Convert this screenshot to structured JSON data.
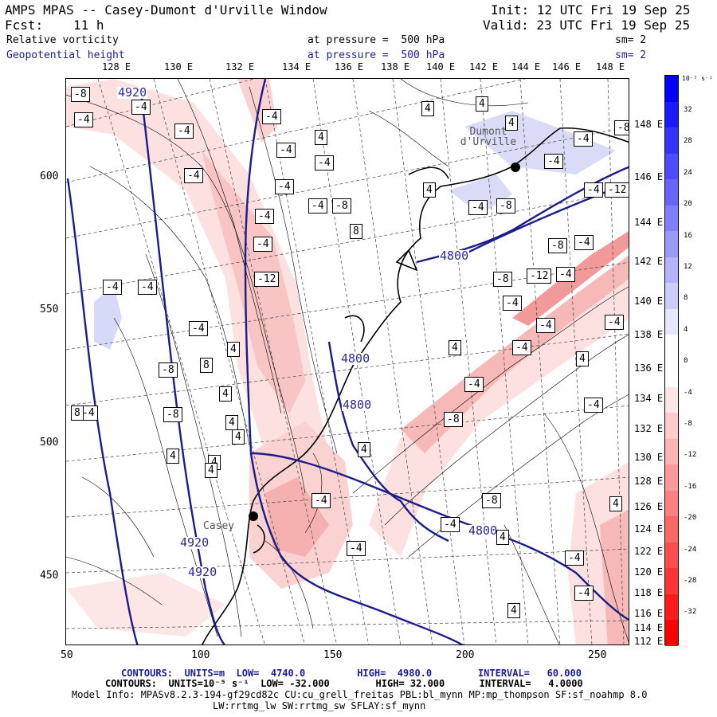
{
  "header": {
    "title": "AMPS MPAS -- Casey-Dumont d'Urville Window",
    "init": "Init: 12 UTC Fri 19 Sep 25",
    "fcst_label": "Fcst:",
    "fcst_value": "11 h",
    "valid": "Valid: 23 UTC Fri 19 Sep 25",
    "field1": "Relative vorticity",
    "field1_level": "at pressure =  500 hPa",
    "field1_sm": "sm= 2",
    "field2": "Geopotential height",
    "field2_level": "at pressure =  500 hPa",
    "field2_sm": "sm= 2"
  },
  "top_longitudes": [
    "128 E",
    "130 E",
    "132 E",
    "134 E",
    "136 E",
    "138 E",
    "140 E",
    "142 E",
    "144 E",
    "146 E",
    "148 E"
  ],
  "right_longitudes": [
    "148 E",
    "146 E",
    "144 E",
    "142 E",
    "140 E",
    "138 E",
    "136 E",
    "134 E",
    "132 E",
    "130 E",
    "128 E",
    "126 E",
    "124 E",
    "122 E",
    "120 E",
    "118 E",
    "116 E",
    "114 E",
    "112 E"
  ],
  "x_ticks": [
    "50",
    "100",
    "150",
    "200",
    "250"
  ],
  "y_ticks": [
    "600",
    "550",
    "500",
    "450"
  ],
  "colorbar": {
    "unit": "10⁻⁵ s⁻¹",
    "labels": [
      "32",
      "28",
      "24",
      "20",
      "16",
      "12",
      "8",
      "4",
      "0",
      "-4",
      "-8",
      "-12",
      "-16",
      "-20",
      "-24",
      "-28",
      "-32"
    ],
    "colors": [
      "#0000ff",
      "#1a1aff",
      "#3333ff",
      "#4d4dff",
      "#6666ff",
      "#8080ff",
      "#9999ff",
      "#b3b3ff",
      "#ccccff",
      "#e6e6ff",
      "#ffffff",
      "#ffffff",
      "#ffe6e6",
      "#ffcccc",
      "#ffb3b3",
      "#ff9999",
      "#ff8080",
      "#ff6666",
      "#ff4d4d",
      "#ff3333",
      "#ff1a1a",
      "#ff0000"
    ]
  },
  "map": {
    "stations": [
      "Dumont d'Urville",
      "Casey"
    ],
    "height_labels": [
      "4920",
      "4800",
      "4800",
      "4800",
      "4800",
      "4920",
      "4920"
    ],
    "vort_labels": [
      "-8",
      "-4",
      "-4",
      "-4",
      "-4",
      "-4",
      "4",
      "4",
      "4",
      "4",
      "-8",
      "-4",
      "-4",
      "-4",
      "-4",
      "-4",
      "-4",
      "-8",
      "8",
      "4",
      "-4",
      "-8",
      "-4",
      "-12",
      "-4",
      "-4",
      "-4",
      "-8",
      "-12",
      "-8",
      "-12",
      "-4",
      "-4",
      "-4",
      "-4",
      "-4",
      "-8",
      "-4",
      "-8",
      "8",
      "4",
      "8",
      "4",
      "4",
      "4",
      "4",
      "4",
      "4",
      "4",
      "4",
      "4",
      "-4",
      "-4",
      "-4",
      "4",
      "-4",
      "-8",
      "-4",
      "-4",
      "-8",
      "-4",
      "-4",
      "-4",
      "4",
      "-4",
      "4"
    ]
  },
  "footer": {
    "line1": "CONTOURS:  UNITS=m  LOW=  4740.0         HIGH=  4980.0        INTERVAL=   60.000",
    "line2": "CONTOURS:  UNITS=10⁻⁵ s⁻¹  LOW= -32.000        HIGH= 32.000      INTERVAL=   4.0000",
    "line3": "Model Info: MPASv8.2.3-194-gf29cd82c CU:cu_grell_freitas PBL:bl_mynn MP:mp_thompson SF:sf_noahmp 8.0",
    "line4": "LW:rrtmg_lw SW:rrtmg_sw SFLAY:sf_mynn"
  }
}
